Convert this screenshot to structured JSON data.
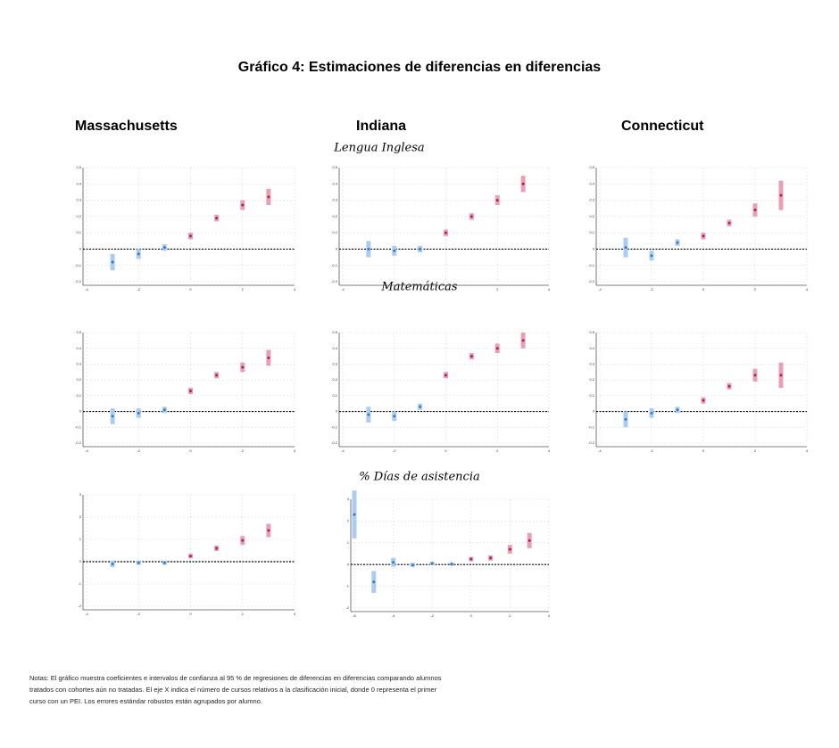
{
  "title": "Gráfico 4: Estimaciones de diferencias en diferencias",
  "columns": [
    "Massachusetts",
    "Indiana",
    "Connecticut"
  ],
  "sections": [
    "Lengua Inglesa",
    "Matemáticas",
    "% Días de asistencia"
  ],
  "notes": [
    "Notas: El gráfico muestra coeficientes e intervalos de confianza al 95 % de regresiones de diferencias en diferencias comparando alumnos",
    "tratados con cohortes aún no tratadas. El eje X indica el número de cursos relativos a la clasificación inicial, donde 0 representa el primer",
    "curso con un PEI. Los errores estándar robustos están agrupados por alumno."
  ],
  "chart_data": [
    {
      "type": "errorbar",
      "x": [
        -3,
        -2,
        -1,
        0,
        1,
        2,
        3
      ],
      "values": [
        -0.08,
        -0.03,
        0.01,
        0.08,
        0.19,
        0.27,
        0.32
      ],
      "errors": [
        0.05,
        0.03,
        0.02,
        0.02,
        0.02,
        0.03,
        0.05
      ],
      "xlim": [
        -4,
        4
      ],
      "xticks": [
        -4,
        -2,
        0,
        2,
        4
      ],
      "ylim": [
        -0.2,
        0.5
      ],
      "yticks": [
        -0.2,
        -0.1,
        0,
        0.1,
        0.2,
        0.3,
        0.4,
        0.5
      ],
      "hline": 0,
      "grid": true,
      "pre_color": "#a9cdf2",
      "post_color": "#e8a0b4",
      "pre_dot": "#3a78c2",
      "post_dot": "#c0194a"
    },
    {
      "type": "errorbar",
      "x": [
        -3,
        -2,
        -1,
        0,
        1,
        2,
        3
      ],
      "values": [
        0,
        -0.01,
        0,
        0.1,
        0.2,
        0.3,
        0.4
      ],
      "errors": [
        0.05,
        0.03,
        0.02,
        0.02,
        0.02,
        0.03,
        0.05
      ],
      "xlim": [
        -4,
        4
      ],
      "xticks": [
        -4,
        -2,
        0,
        2,
        4
      ],
      "ylim": [
        -0.2,
        0.5
      ],
      "yticks": [
        -0.2,
        -0.1,
        0,
        0.1,
        0.2,
        0.3,
        0.4,
        0.5
      ],
      "hline": 0,
      "grid": true,
      "pre_color": "#a9cdf2",
      "post_color": "#e8a0b4",
      "pre_dot": "#3a78c2",
      "post_dot": "#c0194a"
    },
    {
      "type": "errorbar",
      "x": [
        -3,
        -2,
        -1,
        0,
        1,
        2,
        3
      ],
      "values": [
        0.01,
        -0.04,
        0.04,
        0.08,
        0.16,
        0.24,
        0.33
      ],
      "errors": [
        0.06,
        0.03,
        0.02,
        0.02,
        0.02,
        0.04,
        0.09
      ],
      "xlim": [
        -4,
        4
      ],
      "xticks": [
        -4,
        -2,
        0,
        2,
        4
      ],
      "ylim": [
        -0.2,
        0.5
      ],
      "yticks": [
        -0.2,
        -0.1,
        0,
        0.1,
        0.2,
        0.3,
        0.4,
        0.5
      ],
      "hline": 0,
      "grid": true,
      "pre_color": "#a9cdf2",
      "post_color": "#e8a0b4",
      "pre_dot": "#3a78c2",
      "post_dot": "#c0194a"
    },
    {
      "type": "errorbar",
      "x": [
        -3,
        -2,
        -1,
        0,
        1,
        2,
        3
      ],
      "values": [
        -0.03,
        -0.01,
        0.01,
        0.13,
        0.23,
        0.28,
        0.34
      ],
      "errors": [
        0.05,
        0.03,
        0.02,
        0.02,
        0.02,
        0.03,
        0.05
      ],
      "xlim": [
        -4,
        4
      ],
      "xticks": [
        -4,
        -2,
        0,
        2,
        4
      ],
      "ylim": [
        -0.2,
        0.5
      ],
      "yticks": [
        -0.2,
        -0.1,
        0,
        0.1,
        0.2,
        0.3,
        0.4,
        0.5
      ],
      "hline": 0,
      "grid": true,
      "pre_color": "#a9cdf2",
      "post_color": "#e8a0b4",
      "pre_dot": "#3a78c2",
      "post_dot": "#c0194a"
    },
    {
      "type": "errorbar",
      "x": [
        -3,
        -2,
        -1,
        0,
        1,
        2,
        3
      ],
      "values": [
        -0.02,
        -0.03,
        0.03,
        0.23,
        0.35,
        0.4,
        0.45
      ],
      "errors": [
        0.05,
        0.03,
        0.02,
        0.02,
        0.02,
        0.03,
        0.05
      ],
      "xlim": [
        -4,
        4
      ],
      "xticks": [
        -4,
        -2,
        0,
        2,
        4
      ],
      "ylim": [
        -0.2,
        0.5
      ],
      "yticks": [
        -0.2,
        -0.1,
        0,
        0.1,
        0.2,
        0.3,
        0.4,
        0.5
      ],
      "hline": 0,
      "grid": true,
      "pre_color": "#a9cdf2",
      "post_color": "#e8a0b4",
      "pre_dot": "#3a78c2",
      "post_dot": "#c0194a"
    },
    {
      "type": "errorbar",
      "x": [
        -3,
        -2,
        -1,
        0,
        1,
        2,
        3
      ],
      "values": [
        -0.05,
        -0.01,
        0.01,
        0.07,
        0.16,
        0.23,
        0.23
      ],
      "errors": [
        0.05,
        0.03,
        0.02,
        0.02,
        0.02,
        0.04,
        0.08
      ],
      "xlim": [
        -4,
        4
      ],
      "xticks": [
        -4,
        -2,
        0,
        2,
        4
      ],
      "ylim": [
        -0.2,
        0.5
      ],
      "yticks": [
        -0.2,
        -0.1,
        0,
        0.1,
        0.2,
        0.3,
        0.4,
        0.5
      ],
      "hline": 0,
      "grid": true,
      "pre_color": "#a9cdf2",
      "post_color": "#e8a0b4",
      "pre_dot": "#3a78c2",
      "post_dot": "#c0194a"
    },
    {
      "type": "errorbar",
      "x": [
        -3,
        -2,
        -1,
        0,
        1,
        2,
        3
      ],
      "values": [
        -0.1,
        -0.05,
        -0.05,
        0.25,
        0.6,
        0.95,
        1.4
      ],
      "errors": [
        0.15,
        0.1,
        0.1,
        0.1,
        0.12,
        0.2,
        0.3
      ],
      "xlim": [
        -4,
        4
      ],
      "xticks": [
        -4,
        -2,
        0,
        2,
        4
      ],
      "ylim": [
        -2,
        3
      ],
      "yticks": [
        -2,
        -1,
        0,
        1,
        2,
        3
      ],
      "hline": 0,
      "grid": true,
      "pre_color": "#a9cdf2",
      "post_color": "#e8a0b4",
      "pre_dot": "#3a78c2",
      "post_dot": "#c0194a"
    },
    {
      "type": "errorbar",
      "x": [
        -6,
        -5,
        -4,
        -3,
        -2,
        -1,
        0,
        1,
        2,
        3
      ],
      "values": [
        2.3,
        -0.8,
        0.1,
        -0.02,
        0.05,
        0.02,
        0.25,
        0.3,
        0.7,
        1.1
      ],
      "errors": [
        1.1,
        0.5,
        0.2,
        0.1,
        0.08,
        0.08,
        0.1,
        0.12,
        0.2,
        0.35
      ],
      "xlim": [
        -6,
        4
      ],
      "xticks": [
        -6,
        -4,
        -2,
        0,
        2,
        4
      ],
      "ylim": [
        -2,
        3
      ],
      "yticks": [
        -2,
        -1,
        0,
        1,
        2,
        3
      ],
      "hline": 0,
      "grid": true,
      "pre_color": "#a9cdf2",
      "post_color": "#e8a0b4",
      "pre_dot": "#3a78c2",
      "post_dot": "#c0194a"
    }
  ]
}
